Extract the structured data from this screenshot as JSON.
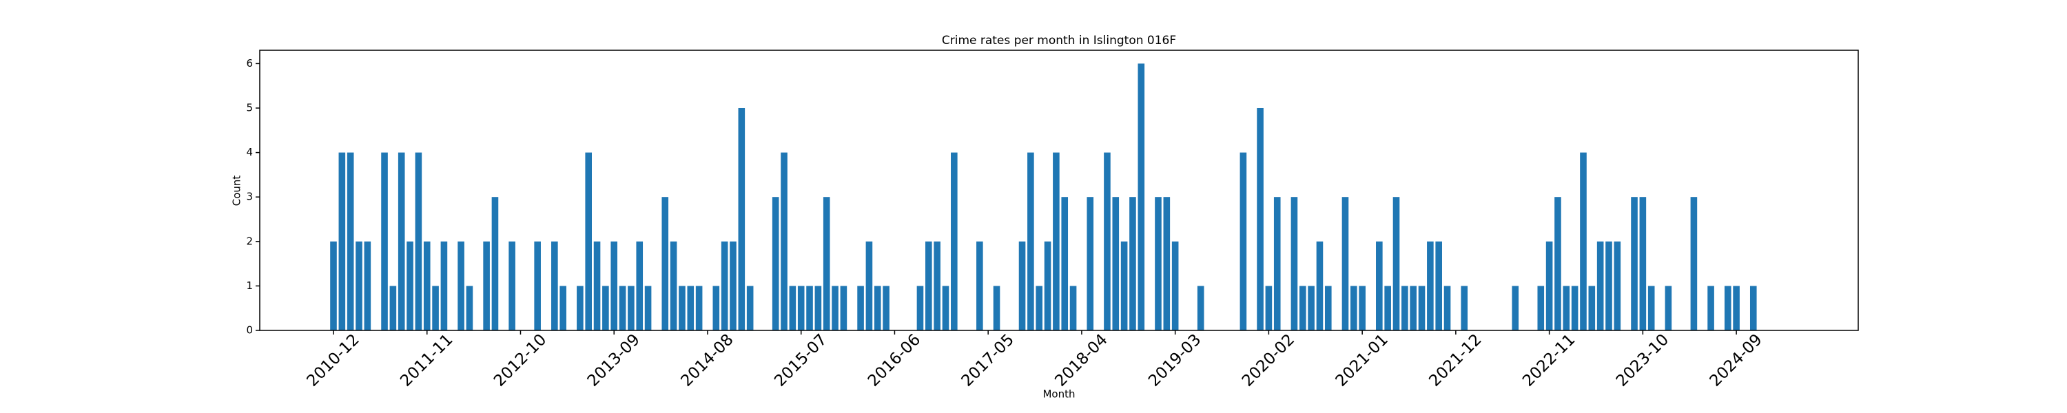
{
  "chart_data": {
    "type": "bar",
    "title": "Crime rates per month in Islington 016F",
    "x_label": "Month",
    "y_label": "Count",
    "color": "#1f77b4",
    "categories": [
      "2010-12",
      null,
      null,
      null,
      null,
      null,
      null,
      null,
      null,
      null,
      null,
      "2011-11",
      null,
      null,
      null,
      null,
      null,
      null,
      null,
      null,
      null,
      null,
      "2012-10",
      null,
      null,
      null,
      null,
      null,
      null,
      null,
      null,
      null,
      null,
      "2013-09",
      null,
      null,
      null,
      null,
      null,
      null,
      null,
      null,
      null,
      null,
      "2014-08",
      null,
      null,
      null,
      null,
      null,
      null,
      null,
      null,
      null,
      null,
      "2015-07",
      null,
      null,
      null,
      null,
      null,
      null,
      null,
      null,
      null,
      null,
      "2016-06",
      null,
      null,
      null,
      null,
      null,
      null,
      null,
      null,
      null,
      null,
      "2017-05",
      null,
      null,
      null,
      null,
      null,
      null,
      null,
      null,
      null,
      null,
      "2018-04",
      null,
      null,
      null,
      null,
      null,
      null,
      null,
      null,
      null,
      null,
      "2019-03",
      null,
      null,
      null,
      null,
      null,
      null,
      null,
      null,
      null,
      null,
      "2020-02",
      null,
      null,
      null,
      null,
      null,
      null,
      null,
      null,
      null,
      null,
      "2021-01",
      null,
      null,
      null,
      null,
      null,
      null,
      null,
      null,
      null,
      null,
      "2021-12",
      null,
      null,
      null,
      null,
      null,
      null,
      null,
      null,
      null,
      null,
      "2022-11",
      null,
      null,
      null,
      null,
      null,
      null,
      null,
      null,
      null,
      null,
      "2023-10",
      null,
      null,
      null,
      null,
      null,
      null,
      null,
      null,
      null,
      null,
      "2024-09",
      null,
      null
    ],
    "values": [
      2,
      4,
      4,
      2,
      2,
      0,
      4,
      1,
      4,
      2,
      4,
      2,
      1,
      2,
      0,
      2,
      1,
      0,
      2,
      3,
      0,
      2,
      0,
      0,
      2,
      0,
      2,
      1,
      0,
      1,
      4,
      2,
      1,
      2,
      1,
      1,
      2,
      1,
      0,
      3,
      2,
      1,
      1,
      1,
      0,
      1,
      2,
      2,
      5,
      1,
      0,
      0,
      3,
      4,
      1,
      1,
      1,
      1,
      3,
      1,
      1,
      0,
      1,
      2,
      1,
      1,
      0,
      0,
      0,
      1,
      2,
      2,
      1,
      4,
      0,
      0,
      2,
      0,
      1,
      0,
      0,
      2,
      4,
      1,
      2,
      4,
      3,
      1,
      0,
      3,
      0,
      4,
      3,
      2,
      3,
      6,
      0,
      3,
      3,
      2,
      0,
      0,
      1,
      0,
      0,
      0,
      0,
      4,
      0,
      5,
      1,
      3,
      0,
      3,
      1,
      1,
      2,
      1,
      0,
      3,
      1,
      1,
      0,
      2,
      1,
      3,
      1,
      1,
      1,
      2,
      2,
      1,
      0,
      1,
      0,
      0,
      0,
      0,
      0,
      1,
      0,
      0,
      1,
      2,
      3,
      1,
      1,
      4,
      1,
      2,
      2,
      2,
      0,
      3,
      3,
      1,
      0,
      1,
      0,
      0,
      3,
      0,
      1,
      0,
      1,
      1,
      0,
      1
    ],
    "ylim": [
      0,
      6.3
    ],
    "yticks": [
      0,
      1,
      2,
      3,
      4,
      5,
      6
    ]
  }
}
